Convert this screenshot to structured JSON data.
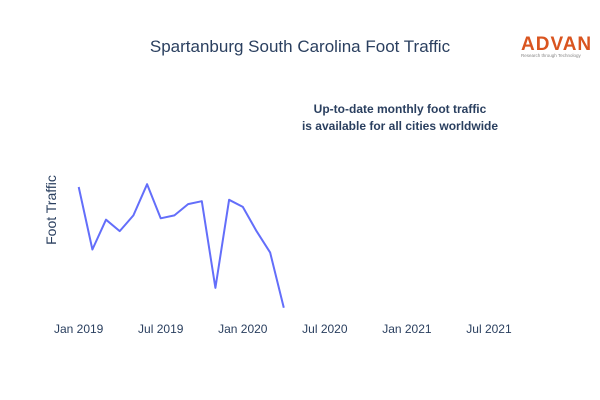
{
  "brand": {
    "name": "ADVAN",
    "tagline": "Research through Technology",
    "color": "#d9541f"
  },
  "annotation": {
    "line1": "Up-to-date monthly foot traffic",
    "line2": "is available for all cities worldwide"
  },
  "chart_data": {
    "type": "line",
    "title": "Spartanburg South Carolina Foot Traffic",
    "xlabel": "",
    "ylabel": "Foot Traffic",
    "x_tick_labels": [
      "Jan 2019",
      "Jul 2019",
      "Jan 2020",
      "Jul 2020",
      "Jan 2021",
      "Jul 2021"
    ],
    "x_ticks": [
      "2019-01",
      "2019-07",
      "2020-01",
      "2020-07",
      "2021-01",
      "2021-07"
    ],
    "xlim": [
      "2018-12",
      "2021-10"
    ],
    "ylim": [
      0,
      100
    ],
    "show_y_tick_labels": false,
    "grid": false,
    "line_color": "#636efa",
    "series": [
      {
        "x": [
          "2019-01",
          "2019-02",
          "2019-03",
          "2019-04",
          "2019-05",
          "2019-06",
          "2019-07",
          "2019-08",
          "2019-09",
          "2019-10",
          "2019-11",
          "2019-12",
          "2020-01",
          "2020-02",
          "2020-03",
          "2020-04"
        ],
        "values": [
          88,
          44,
          65,
          57,
          68,
          90,
          66,
          68,
          76,
          78,
          17,
          79,
          74,
          57,
          42,
          3
        ]
      }
    ]
  }
}
